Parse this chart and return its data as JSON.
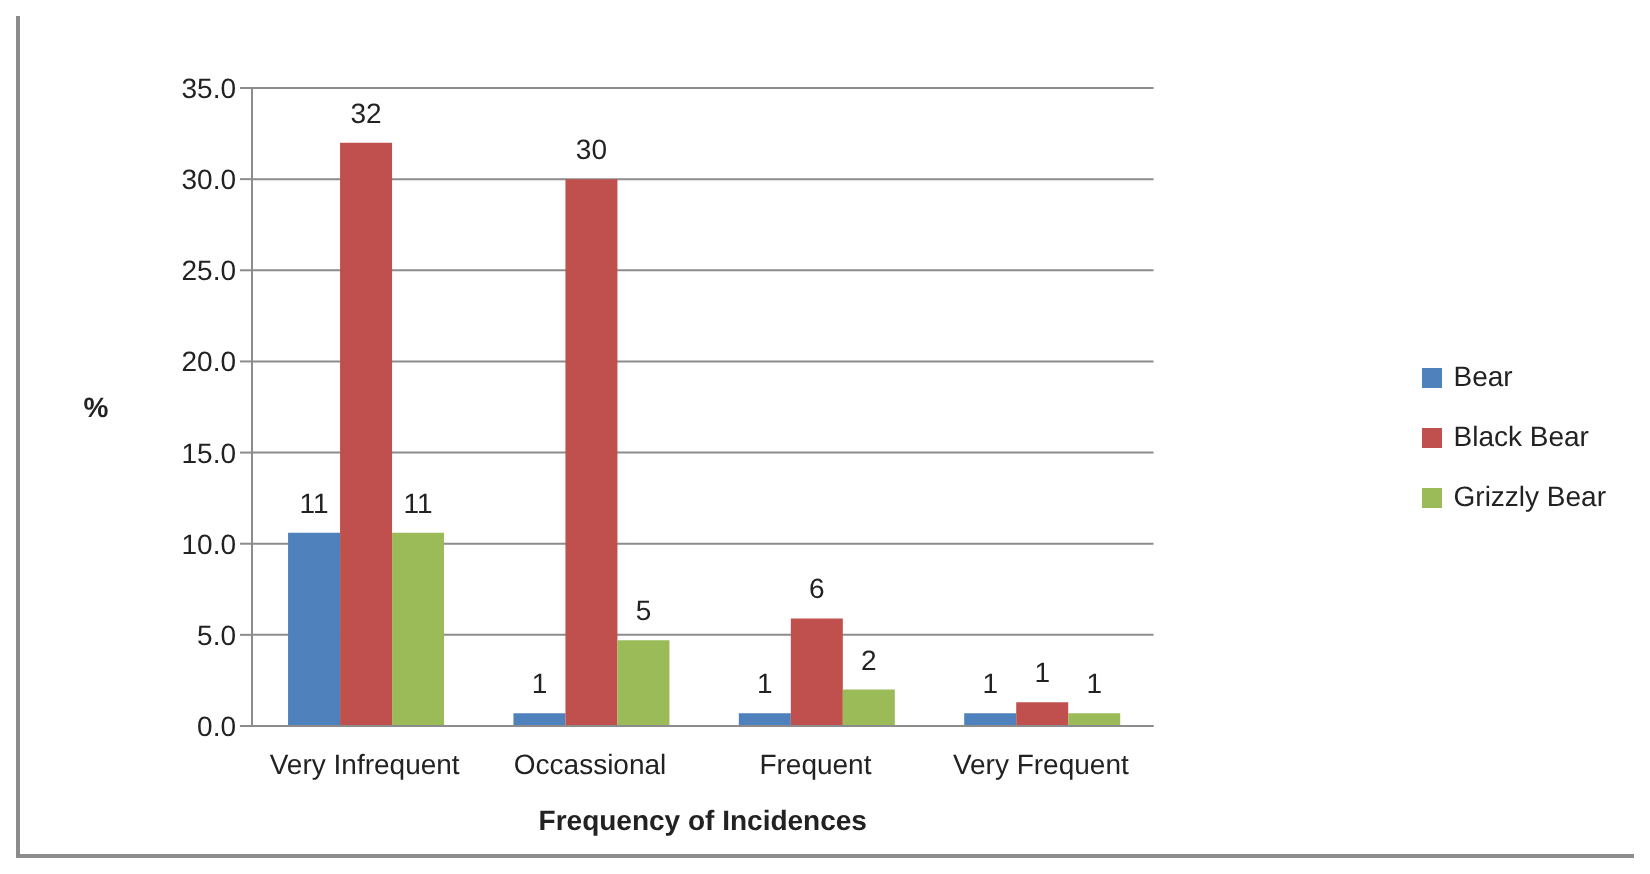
{
  "chart_data": {
    "type": "bar",
    "xlabel": "Frequency of Incidences",
    "ylabel": "%",
    "categories": [
      "Very Infrequent",
      "Occassional",
      "Frequent",
      "Very Frequent"
    ],
    "series": [
      {
        "name": "Bear",
        "color": "#4f81bd",
        "values": [
          10.6,
          0.7,
          0.7,
          0.7
        ],
        "value_labels": [
          "11",
          "1",
          "1",
          "1"
        ]
      },
      {
        "name": "Black Bear",
        "color": "#c0504d",
        "values": [
          32.0,
          30.0,
          5.9,
          1.3
        ],
        "value_labels": [
          "32",
          "30",
          "6",
          "1"
        ]
      },
      {
        "name": "Grizzly Bear",
        "color": "#9bbb59",
        "values": [
          10.6,
          4.7,
          2.0,
          0.7
        ],
        "value_labels": [
          "11",
          "5",
          "2",
          "1"
        ]
      }
    ],
    "ylim": [
      0,
      35
    ],
    "yticks": [
      {
        "value": 0,
        "label": "0.0"
      },
      {
        "value": 5,
        "label": "5.0"
      },
      {
        "value": 10,
        "label": "10.0"
      },
      {
        "value": 15,
        "label": "15.0"
      },
      {
        "value": 20,
        "label": "20.0"
      },
      {
        "value": 25,
        "label": "25.0"
      },
      {
        "value": 30,
        "label": "30.0"
      },
      {
        "value": 35,
        "label": "35.0"
      }
    ],
    "grid": "y",
    "legend": "right"
  }
}
